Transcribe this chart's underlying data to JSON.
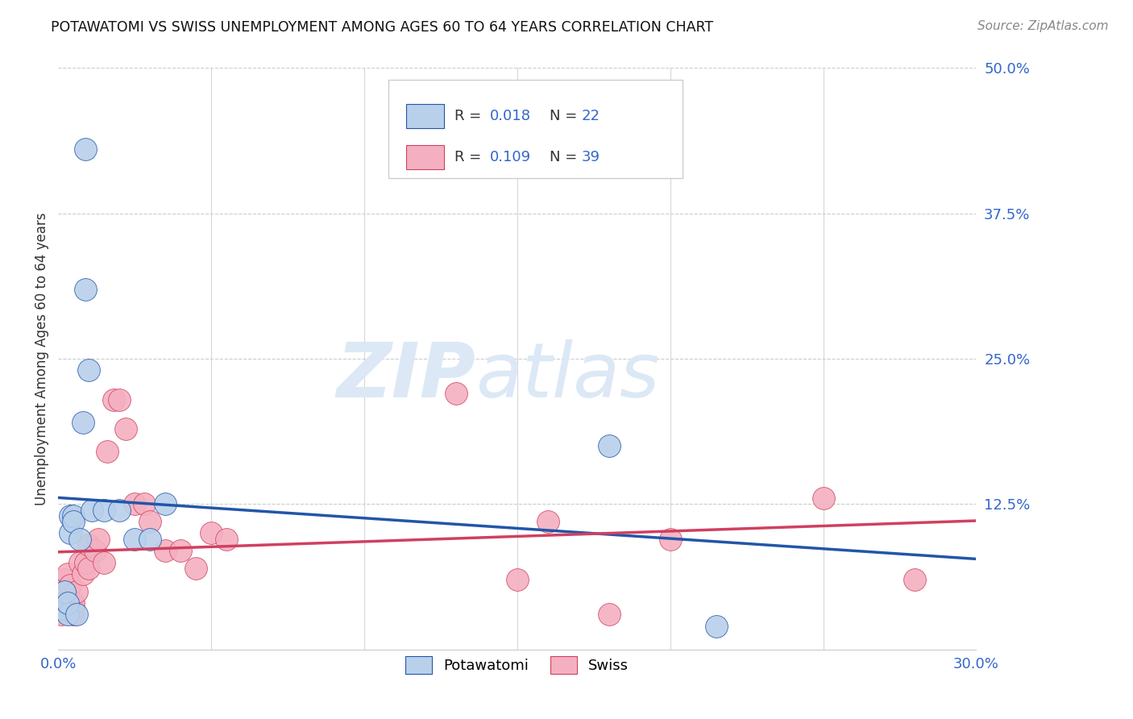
{
  "title": "POTAWATOMI VS SWISS UNEMPLOYMENT AMONG AGES 60 TO 64 YEARS CORRELATION CHART",
  "source": "Source: ZipAtlas.com",
  "ylabel": "Unemployment Among Ages 60 to 64 years",
  "xlim": [
    0.0,
    0.3
  ],
  "ylim": [
    0.0,
    0.5
  ],
  "xticks": [
    0.0,
    0.05,
    0.1,
    0.15,
    0.2,
    0.25,
    0.3
  ],
  "yticks_right": [
    0.0,
    0.125,
    0.25,
    0.375,
    0.5
  ],
  "potawatomi_color": "#b8d0ea",
  "swiss_color": "#f4b0c0",
  "potawatomi_line_color": "#2255aa",
  "swiss_line_color": "#d04060",
  "legend_text_color": "#333333",
  "legend_val_color": "#3366cc",
  "watermark_color": "#dce8f5",
  "grid_color": "#cccccc",
  "background_color": "#ffffff",
  "axis_label_color": "#3366cc",
  "potawatomi_R": "0.018",
  "potawatomi_N": "22",
  "swiss_R": "0.109",
  "swiss_N": "39",
  "potawatomi_x": [
    0.001,
    0.002,
    0.003,
    0.003,
    0.004,
    0.004,
    0.005,
    0.005,
    0.006,
    0.007,
    0.008,
    0.009,
    0.009,
    0.01,
    0.011,
    0.015,
    0.02,
    0.025,
    0.03,
    0.035,
    0.18,
    0.215
  ],
  "potawatomi_y": [
    0.035,
    0.05,
    0.03,
    0.04,
    0.1,
    0.115,
    0.115,
    0.11,
    0.03,
    0.095,
    0.195,
    0.31,
    0.43,
    0.24,
    0.12,
    0.12,
    0.12,
    0.095,
    0.095,
    0.125,
    0.175,
    0.02
  ],
  "swiss_x": [
    0.001,
    0.001,
    0.002,
    0.002,
    0.003,
    0.003,
    0.004,
    0.004,
    0.005,
    0.005,
    0.005,
    0.006,
    0.007,
    0.008,
    0.009,
    0.01,
    0.01,
    0.012,
    0.013,
    0.015,
    0.016,
    0.018,
    0.02,
    0.022,
    0.025,
    0.028,
    0.03,
    0.035,
    0.04,
    0.045,
    0.05,
    0.055,
    0.13,
    0.15,
    0.16,
    0.18,
    0.2,
    0.25,
    0.28
  ],
  "swiss_y": [
    0.04,
    0.03,
    0.035,
    0.06,
    0.04,
    0.065,
    0.035,
    0.055,
    0.03,
    0.035,
    0.04,
    0.05,
    0.075,
    0.065,
    0.075,
    0.07,
    0.09,
    0.085,
    0.095,
    0.075,
    0.17,
    0.215,
    0.215,
    0.19,
    0.125,
    0.125,
    0.11,
    0.085,
    0.085,
    0.07,
    0.1,
    0.095,
    0.22,
    0.06,
    0.11,
    0.03,
    0.095,
    0.13,
    0.06
  ]
}
